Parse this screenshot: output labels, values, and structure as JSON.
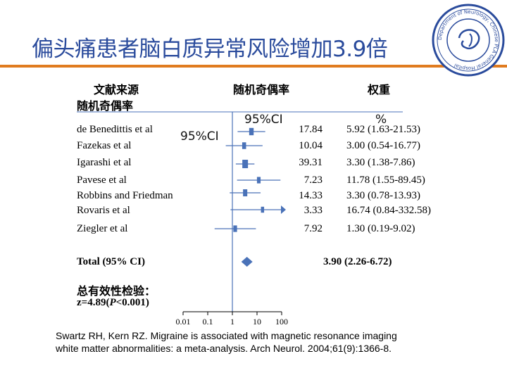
{
  "title": "偏头痛患者脑白质异常风险增加3.9倍",
  "logo": {
    "text_ring": "Department of Neurology, Chinese PLA General Hospital",
    "accent_color": "#2a4b9c"
  },
  "columns": {
    "source": "文献来源",
    "or_left": "随机奇偶率",
    "or_center": "随机奇偶率",
    "weight": "权重",
    "weight_unit": "%",
    "ci_center": "95%CI",
    "ci_left": "95%CI"
  },
  "chart_data": {
    "type": "forest",
    "x_scale": "log",
    "xlim": [
      0.01,
      100
    ],
    "null_value": 1,
    "tick_labels": [
      "0.01",
      "0.1",
      "1",
      "10",
      "100"
    ],
    "studies": [
      {
        "name": "de Benedittis et al",
        "weight": "17.84",
        "or_ci": "5.92 (1.63-21.53)",
        "or": 5.92,
        "lo": 1.63,
        "hi": 21.53
      },
      {
        "name": "Fazekas et al",
        "weight": "10.04",
        "or_ci": "3.00 (0.54-16.77)",
        "or": 3.0,
        "lo": 0.54,
        "hi": 16.77
      },
      {
        "name": "Igarashi et al",
        "weight": "39.31",
        "or_ci": "3.30 (1.38-7.86)",
        "or": 3.3,
        "lo": 1.38,
        "hi": 7.86
      },
      {
        "name": "Pavese et al",
        "weight": "7.23",
        "or_ci": "11.78 (1.55-89.45)",
        "or": 11.78,
        "lo": 1.55,
        "hi": 89.45
      },
      {
        "name": "Robbins and Friedman",
        "weight": "14.33",
        "or_ci": "3.30 (0.78-13.93)",
        "or": 3.3,
        "lo": 0.78,
        "hi": 13.93
      },
      {
        "name": "Rovaris et al",
        "weight": "3.33",
        "or_ci": "16.74 (0.84-332.58)",
        "or": 16.74,
        "lo": 0.84,
        "hi": 332.58
      },
      {
        "name": "Ziegler et al",
        "weight": "7.92",
        "or_ci": "1.30 (0.19-9.02)",
        "or": 1.3,
        "lo": 0.19,
        "hi": 9.02
      }
    ],
    "total": {
      "label": "Total (95% CI)",
      "or_ci": "3.90 (2.26-6.72)",
      "or": 3.9,
      "lo": 2.26,
      "hi": 6.72
    },
    "test": {
      "label": "总有效性检验：",
      "stat_prefix": "z=4.89(",
      "p_symbol": "P",
      "stat_suffix": "<0.001)"
    },
    "colors": {
      "marker": "#4a72b8",
      "lines": "#4a72b8",
      "axis": "#000000"
    }
  },
  "citation": "Swartz RH, Kern RZ. Migraine is associated with magnetic resonance imaging white matter abnormalities: a meta-analysis. Arch Neurol. 2004;61(9):1366-8."
}
